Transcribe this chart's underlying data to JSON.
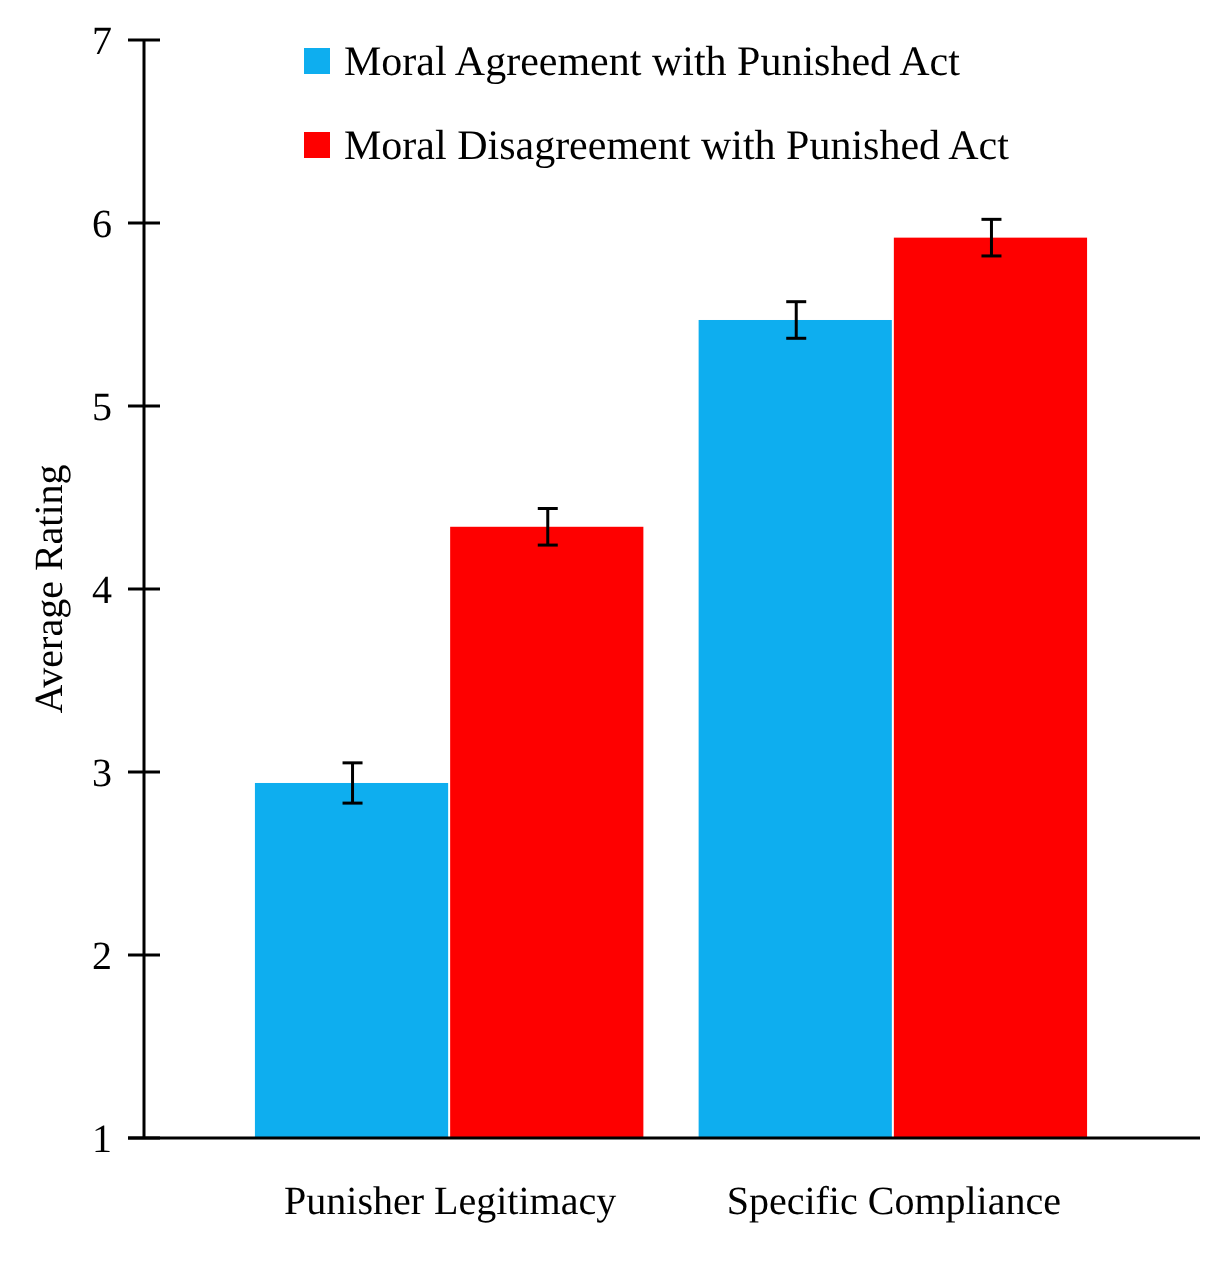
{
  "chart_data": {
    "type": "bar",
    "ylabel": "Average Rating",
    "categories": [
      "Punisher Legitimacy",
      "Specific Compliance"
    ],
    "series": [
      {
        "name": "Moral Agreement with Punished Act",
        "color": "#0eaeef",
        "values": [
          2.94,
          5.47
        ],
        "errors": [
          0.11,
          0.1
        ]
      },
      {
        "name": "Moral Disagreement with Punished Act",
        "color": "#fe0000",
        "values": [
          4.34,
          5.92
        ],
        "errors": [
          0.1,
          0.1
        ]
      }
    ],
    "ylim": [
      1,
      7
    ],
    "yticks": [
      1,
      2,
      3,
      4,
      5,
      6,
      7
    ],
    "grid": false,
    "legend": "top right"
  }
}
